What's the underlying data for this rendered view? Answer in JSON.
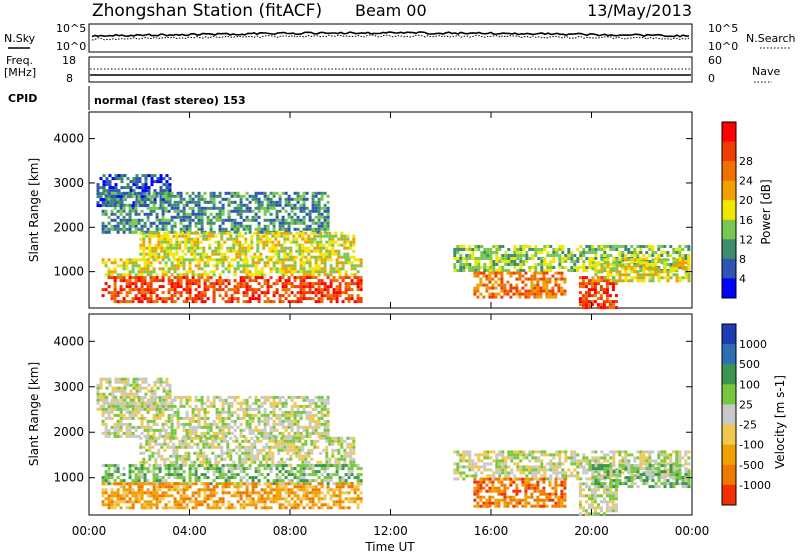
{
  "header": {
    "station": "Zhongshan Station (fitACF)",
    "beam": "Beam 00",
    "date": "13/May/2013"
  },
  "panels": {
    "nsky_label": "N.Sky",
    "nsearch_label": "N.Search",
    "noise_ticks_left": [
      "10^5",
      "10^0"
    ],
    "noise_ticks_right": [
      "10^5",
      "10^0"
    ],
    "freq_label_line1": "Freq.",
    "freq_label_line2": "[MHz]",
    "freq_ticks": [
      "18",
      "8"
    ],
    "nave_label": "Nave",
    "nave_ticks": [
      "60",
      "0"
    ],
    "cpid_label": "CPID",
    "cpid_value": "normal (fast stereo) 153"
  },
  "chart_data": [
    {
      "type": "heatmap",
      "panel": "power",
      "ylabel": "Slant Range [km]",
      "yticks": [
        "1000",
        "2000",
        "3000",
        "4000"
      ],
      "ylim": [
        180,
        4600
      ],
      "xlim": [
        0,
        24
      ],
      "xticks": [
        "00:00",
        "04:00",
        "08:00",
        "12:00",
        "16:00",
        "20:00",
        "00:00"
      ],
      "colorbar": {
        "label": "Power [dB]",
        "ticks": [
          "4",
          "8",
          "12",
          "16",
          "20",
          "24",
          "28"
        ],
        "range": [
          0,
          30
        ],
        "colors": [
          "#0000ff",
          "#2d55b4",
          "#3e8c6e",
          "#78c850",
          "#f0e600",
          "#f0a000",
          "#f07000",
          "#f03c00",
          "#ff0000"
        ]
      },
      "echo_regions": [
        {
          "t0": 0.3,
          "t1": 3.2,
          "r0": 2500,
          "r1": 3200,
          "level": 1
        },
        {
          "t0": 0.5,
          "t1": 9.5,
          "r0": 1900,
          "r1": 2800,
          "level": 2
        },
        {
          "t0": 2.0,
          "t1": 10.5,
          "r0": 1300,
          "r1": 1900,
          "level": 4
        },
        {
          "t0": 0.5,
          "t1": 10.8,
          "r0": 900,
          "r1": 1300,
          "level": 4
        },
        {
          "t0": 0.5,
          "t1": 10.8,
          "r0": 350,
          "r1": 900,
          "level": 7
        },
        {
          "t0": 14.5,
          "t1": 23.9,
          "r0": 1000,
          "r1": 1600,
          "level": 3
        },
        {
          "t0": 15.3,
          "t1": 19.0,
          "r0": 400,
          "r1": 1000,
          "level": 6
        },
        {
          "t0": 19.5,
          "t1": 21.0,
          "r0": 180,
          "r1": 900,
          "level": 7
        },
        {
          "t0": 20.0,
          "t1": 23.9,
          "r0": 800,
          "r1": 1300,
          "level": 4
        }
      ]
    },
    {
      "type": "heatmap",
      "panel": "velocity",
      "ylabel": "Slant Range [km]",
      "yticks": [
        "1000",
        "2000",
        "3000",
        "4000"
      ],
      "ylim": [
        180,
        4600
      ],
      "xlim": [
        0,
        24
      ],
      "xlabel": "Time UT",
      "xticks": [
        "00:00",
        "04:00",
        "08:00",
        "12:00",
        "16:00",
        "20:00",
        "00:00"
      ],
      "colorbar": {
        "label": "Velocity [m s-1]",
        "ticks": [
          "1000",
          "500",
          "100",
          "25",
          "-25",
          "-100",
          "-500",
          "-1000"
        ],
        "colors": [
          "#1e3cb4",
          "#2d6eb4",
          "#3c9650",
          "#78c83c",
          "#c8c8c8",
          "#f0c850",
          "#f0a000",
          "#f07800",
          "#f03000"
        ]
      },
      "echo_regions": [
        {
          "t0": 0.3,
          "t1": 3.2,
          "r0": 2500,
          "r1": 3200,
          "level": 4
        },
        {
          "t0": 0.5,
          "t1": 9.5,
          "r0": 1900,
          "r1": 2800,
          "level": 4
        },
        {
          "t0": 2.0,
          "t1": 10.5,
          "r0": 1300,
          "r1": 1900,
          "level": 4
        },
        {
          "t0": 0.5,
          "t1": 10.8,
          "r0": 900,
          "r1": 1300,
          "level": 3
        },
        {
          "t0": 0.5,
          "t1": 10.8,
          "r0": 350,
          "r1": 900,
          "level": 6
        },
        {
          "t0": 14.5,
          "t1": 23.9,
          "r0": 1000,
          "r1": 1600,
          "level": 4
        },
        {
          "t0": 15.3,
          "t1": 19.0,
          "r0": 400,
          "r1": 1000,
          "level": 7
        },
        {
          "t0": 19.5,
          "t1": 21.0,
          "r0": 180,
          "r1": 900,
          "level": 4
        },
        {
          "t0": 20.0,
          "t1": 23.9,
          "r0": 800,
          "r1": 1300,
          "level": 3
        }
      ]
    }
  ]
}
